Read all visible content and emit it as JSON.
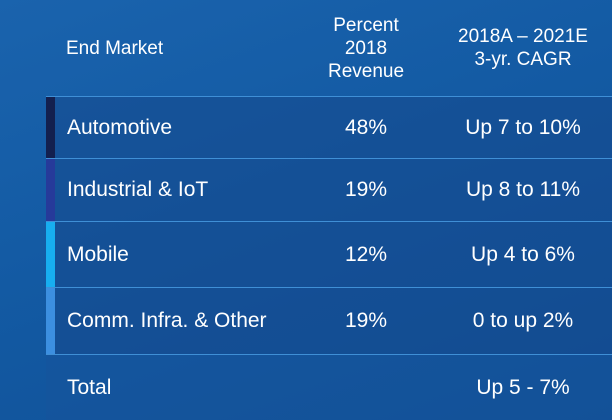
{
  "header": {
    "col1": "End Market",
    "col2": "Percent\n2018\nRevenue",
    "col3": "2018A – 2021E\n3-yr. CAGR"
  },
  "rows": [
    {
      "market": "Automotive",
      "percent": "48%",
      "cagr": "Up 7 to 10%",
      "color": "#13204f"
    },
    {
      "market": "Industrial & IoT",
      "percent": "19%",
      "cagr": "Up 8 to 11%",
      "color": "#263a9a"
    },
    {
      "market": "Mobile",
      "percent": "12%",
      "cagr": "Up 4 to 6%",
      "color": "#17aef0"
    },
    {
      "market": "Comm. Infra. & Other",
      "percent": "19%",
      "cagr": "0 to up 2%",
      "color": "#3c8fe0"
    }
  ],
  "total": {
    "market": "Total",
    "percent": "",
    "cagr": "Up 5 - 7%"
  }
}
